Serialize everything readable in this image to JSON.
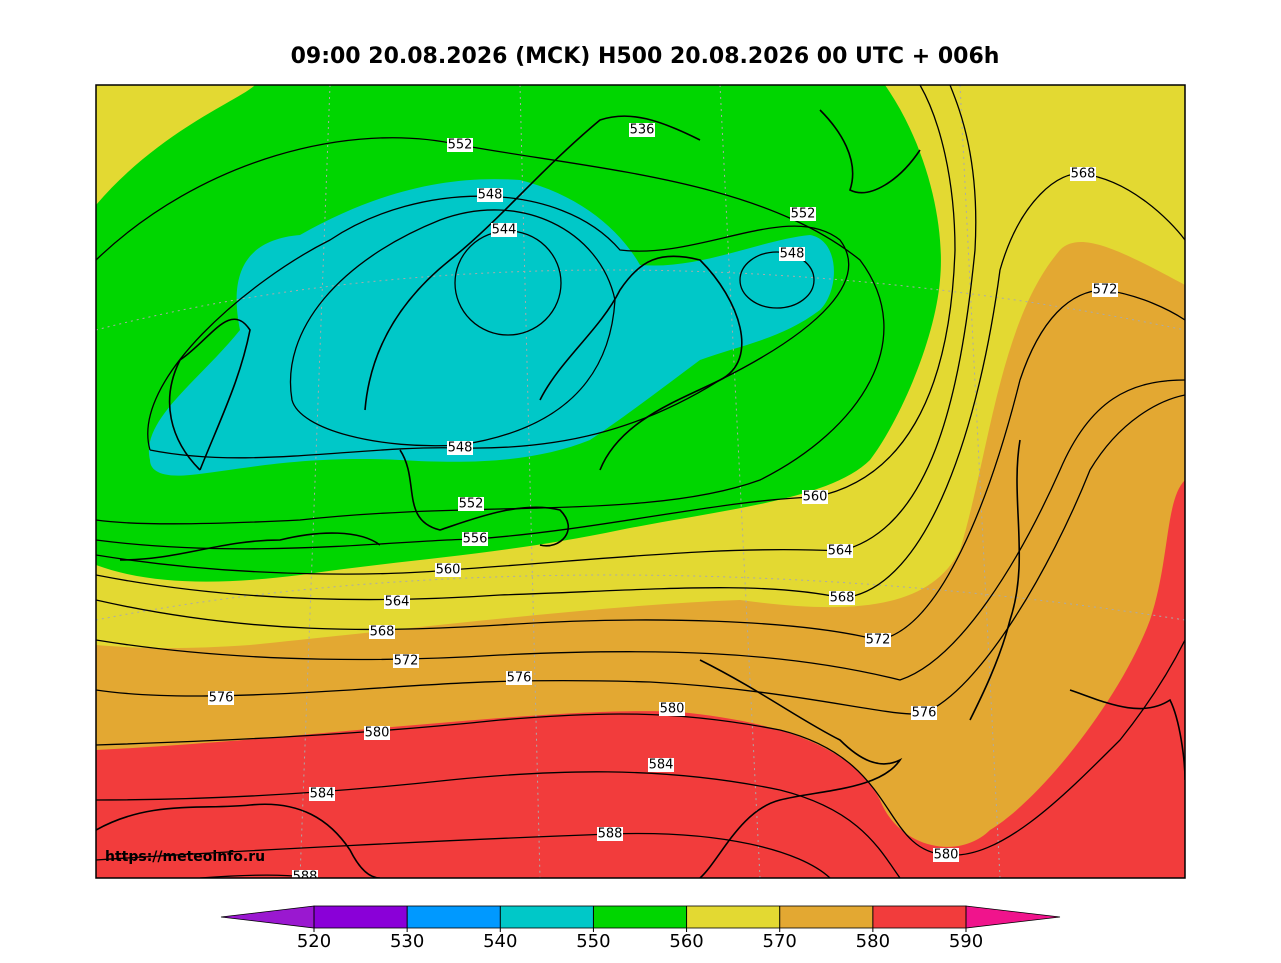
{
  "title": "09:00 20.08.2026 (MCK) H500  20.08.2026 00 UTC + 006h",
  "source": "https://meteoinfo.ru",
  "contour_labels": [
    "552",
    "536",
    "548",
    "544",
    "552",
    "548",
    "568",
    "572",
    "548",
    "552",
    "556",
    "560",
    "564",
    "560",
    "564",
    "568",
    "568",
    "572",
    "572",
    "576",
    "576",
    "580",
    "576",
    "580",
    "584",
    "584",
    "588",
    "580",
    "588"
  ],
  "colorbar": {
    "ticks": [
      520,
      530,
      540,
      550,
      560,
      570,
      580,
      590
    ],
    "colors": [
      "#8a00d8",
      "#0099ff",
      "#00c8c8",
      "#00d600",
      "#e3d932",
      "#e3a832",
      "#f23c3c"
    ],
    "under_color": "#9a18d0",
    "over_color": "#f0148c"
  }
}
